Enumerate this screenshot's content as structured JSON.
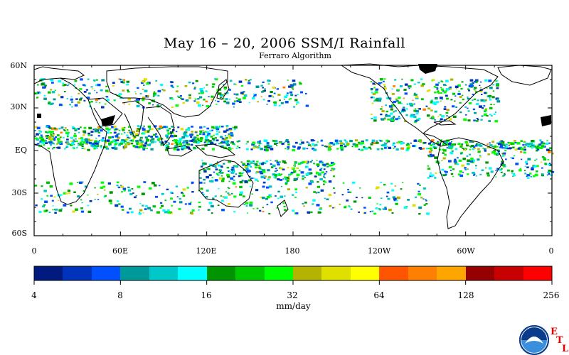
{
  "header": {
    "title": "May 16 – 20, 2006 SSM/I Rainfall",
    "subtitle": "Ferraro Algorithm"
  },
  "map": {
    "lat_labels": [
      "60N",
      "30N",
      "EQ",
      "30S",
      "60S"
    ],
    "lon_labels": [
      "0",
      "60E",
      "120E",
      "180",
      "120W",
      "60W",
      "0"
    ]
  },
  "colorbar": {
    "colors": [
      "#001a80",
      "#0033bb",
      "#0050ff",
      "#009999",
      "#00c8c8",
      "#00ffff",
      "#009400",
      "#00c800",
      "#00ff00",
      "#b4b400",
      "#e0e000",
      "#ffff00",
      "#ff5500",
      "#ff8000",
      "#ffa500",
      "#960000",
      "#c80000",
      "#ff0000"
    ],
    "tick_labels": [
      "4",
      "8",
      "16",
      "32",
      "64",
      "128",
      "256"
    ],
    "unit_label": "mm/day"
  },
  "logo": {
    "icon": "noaa-logo-icon",
    "letters": [
      "E",
      "T",
      "L"
    ]
  }
}
